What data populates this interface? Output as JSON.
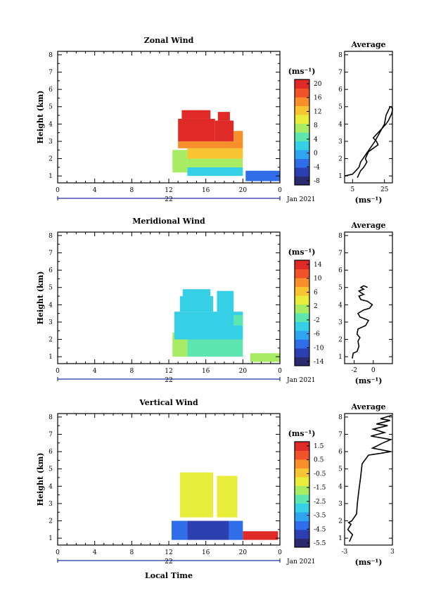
{
  "figure": {
    "x_axis_label": "Local Time",
    "date_label": "Jan 2021",
    "day_label": "22",
    "unit_label": "(ms⁻¹)",
    "avg_unit_label": "(ms⁻¹)"
  },
  "chart_data": [
    {
      "type": "heatmap",
      "title": "Zonal Wind",
      "xlabel": "",
      "ylabel": "Height (km)",
      "x_ticks": [
        "0",
        "4",
        "8",
        "12",
        "16",
        "20",
        "0"
      ],
      "xlim": [
        0,
        24
      ],
      "y_ticks": [
        "1",
        "2",
        "3",
        "4",
        "5",
        "6",
        "7",
        "8"
      ],
      "ylim": [
        0.6,
        8.2
      ],
      "colorbar": {
        "label": "(ms⁻¹)",
        "tick_labels": [
          "20",
          "16",
          "12",
          "8",
          "4",
          "0",
          "-4",
          "-8"
        ],
        "range": [
          -10,
          22
        ],
        "colors": [
          "#2a2a6e",
          "#2c3fb0",
          "#2f6ee8",
          "#2fa4f0",
          "#35d0e6",
          "#5ee6b0",
          "#a8ec64",
          "#e8ec3a",
          "#f7c531",
          "#f7902b",
          "#f0522a",
          "#e02a28"
        ]
      },
      "regions": [
        {
          "x": [
            12.4,
            14.0
          ],
          "y": [
            1.2,
            2.5
          ],
          "value": 7
        },
        {
          "x": [
            14.0,
            20.0
          ],
          "y": [
            1.0,
            1.5
          ],
          "value": 3
        },
        {
          "x": [
            14.0,
            20.0
          ],
          "y": [
            1.5,
            2.0
          ],
          "value": 8
        },
        {
          "x": [
            14.0,
            20.0
          ],
          "y": [
            2.0,
            2.6
          ],
          "value": 12
        },
        {
          "x": [
            13.0,
            20.0
          ],
          "y": [
            2.6,
            3.0
          ],
          "value": 15
        },
        {
          "x": [
            13.0,
            17.0
          ],
          "y": [
            3.0,
            4.3
          ],
          "value": 20
        },
        {
          "x": [
            13.4,
            16.5
          ],
          "y": [
            4.3,
            4.8
          ],
          "value": 21
        },
        {
          "x": [
            17.0,
            19.0
          ],
          "y": [
            3.0,
            4.2
          ],
          "value": 20
        },
        {
          "x": [
            17.3,
            18.6
          ],
          "y": [
            4.2,
            4.7
          ],
          "value": 21
        },
        {
          "x": [
            19.0,
            20.0
          ],
          "y": [
            3.0,
            3.6
          ],
          "value": 16
        },
        {
          "x": [
            20.3,
            24.0
          ],
          "y": [
            0.7,
            1.3
          ],
          "value": -3
        }
      ],
      "average_profile": {
        "title": "Average",
        "xlabel": "(ms⁻¹)",
        "x_ticks": [
          "5",
          "25"
        ],
        "xlim": [
          0,
          30
        ],
        "ylim": [
          0.6,
          8.2
        ],
        "x": [
          0,
          5,
          9,
          10,
          13,
          16,
          19,
          22,
          25,
          26,
          28,
          28.5,
          29,
          30,
          30,
          29.5,
          28.5,
          27.5,
          26,
          24,
          22,
          20,
          18,
          20,
          21,
          18,
          15,
          14,
          13,
          13.5,
          14,
          12,
          10,
          9,
          8
        ],
        "y": [
          1.0,
          1.1,
          1.5,
          1.8,
          2.2,
          2.6,
          3.0,
          3.5,
          4.0,
          4.5,
          4.9,
          5.0,
          5.0,
          4.9,
          4.8,
          4.6,
          4.4,
          4.2,
          4.0,
          3.8,
          3.6,
          3.4,
          3.2,
          3.0,
          2.8,
          2.6,
          2.4,
          2.2,
          2.0,
          1.9,
          1.8,
          1.5,
          1.3,
          1.1,
          0.9
        ]
      }
    },
    {
      "type": "heatmap",
      "title": "Meridional Wind",
      "xlabel": "",
      "ylabel": "Height (km)",
      "x_ticks": [
        "0",
        "4",
        "8",
        "12",
        "16",
        "20",
        "0"
      ],
      "xlim": [
        0,
        24
      ],
      "y_ticks": [
        "1",
        "2",
        "3",
        "4",
        "5",
        "6",
        "7",
        "8"
      ],
      "ylim": [
        0.6,
        8.2
      ],
      "colorbar": {
        "label": "(ms⁻¹)",
        "tick_labels": [
          "14",
          "10",
          "6",
          "2",
          "-2",
          "-6",
          "-10",
          "-14"
        ],
        "range": [
          -16,
          16
        ],
        "colors": [
          "#2a2a6e",
          "#2c3fb0",
          "#2f6ee8",
          "#2fa4f0",
          "#35d0e6",
          "#5ee6b0",
          "#a8ec64",
          "#e8ec3a",
          "#f7c531",
          "#f7902b",
          "#f0522a",
          "#e02a28"
        ]
      },
      "regions": [
        {
          "x": [
            12.4,
            14.0
          ],
          "y": [
            1.0,
            2.4
          ],
          "value": 0
        },
        {
          "x": [
            14.0,
            20.0
          ],
          "y": [
            1.0,
            2.0
          ],
          "value": -1
        },
        {
          "x": [
            12.6,
            20.0
          ],
          "y": [
            2.0,
            3.6
          ],
          "value": -3
        },
        {
          "x": [
            13.2,
            16.8
          ],
          "y": [
            3.6,
            4.5
          ],
          "value": -4
        },
        {
          "x": [
            13.5,
            16.5
          ],
          "y": [
            4.5,
            4.9
          ],
          "value": -5
        },
        {
          "x": [
            17.2,
            19.0
          ],
          "y": [
            3.4,
            4.8
          ],
          "value": -4
        },
        {
          "x": [
            19.0,
            20.0
          ],
          "y": [
            2.8,
            3.4
          ],
          "value": -2
        },
        {
          "x": [
            20.8,
            24.0
          ],
          "y": [
            0.7,
            1.2
          ],
          "value": 0
        }
      ],
      "average_profile": {
        "title": "Average",
        "xlabel": "(ms⁻¹)",
        "x_ticks": [
          "-2",
          "0"
        ],
        "xlim": [
          -3,
          2
        ],
        "ylim": [
          0.6,
          8.2
        ],
        "x": [
          -2.2,
          -2.1,
          -1.7,
          -1.5,
          -1.6,
          -1.4,
          -1.7,
          -1.6,
          -0.8,
          -0.5,
          -1.4,
          -1.6,
          -1.0,
          -0.4,
          -0.1,
          -0.6,
          -1.3,
          -1.5,
          -1.0,
          -1.3,
          -1.5,
          -1.0,
          -1.3,
          -1.0,
          -0.6
        ],
        "y": [
          0.9,
          1.2,
          1.3,
          1.6,
          1.9,
          2.1,
          2.3,
          2.6,
          2.8,
          3.1,
          3.3,
          3.5,
          3.7,
          3.8,
          4.0,
          4.2,
          4.3,
          4.5,
          4.6,
          4.7,
          4.8,
          4.9,
          5.0,
          5.1,
          5.0
        ]
      }
    },
    {
      "type": "heatmap",
      "title": "Vertical Wind",
      "xlabel": "Local Time",
      "ylabel": "Height (km)",
      "x_ticks": [
        "0",
        "4",
        "8",
        "12",
        "16",
        "20",
        "0"
      ],
      "xlim": [
        0,
        24
      ],
      "y_ticks": [
        "1",
        "2",
        "3",
        "4",
        "5",
        "6",
        "7",
        "8"
      ],
      "ylim": [
        0.6,
        8.2
      ],
      "colorbar": {
        "label": "(ms⁻¹)",
        "tick_labels": [
          "1.5",
          "0.5",
          "-0.5",
          "-1.5",
          "-2.5",
          "-3.5",
          "-4.5",
          "-5.5"
        ],
        "range": [
          -6,
          2
        ],
        "colors": [
          "#2a2a6e",
          "#2c3fb0",
          "#2f6ee8",
          "#2fa4f0",
          "#35d0e6",
          "#5ee6b0",
          "#a8ec64",
          "#e8ec3a",
          "#f7c531",
          "#f7902b",
          "#f0522a",
          "#e02a28"
        ]
      },
      "regions": [
        {
          "x": [
            12.3,
            14.0
          ],
          "y": [
            0.9,
            2.0
          ],
          "value": -4.5
        },
        {
          "x": [
            14.0,
            18.5
          ],
          "y": [
            0.9,
            2.0
          ],
          "value": -5.2
        },
        {
          "x": [
            18.5,
            20.0
          ],
          "y": [
            0.9,
            2.0
          ],
          "value": -4.5
        },
        {
          "x": [
            13.2,
            16.8
          ],
          "y": [
            2.2,
            4.8
          ],
          "value": -0.8
        },
        {
          "x": [
            17.2,
            19.4
          ],
          "y": [
            2.2,
            4.6
          ],
          "value": -1.0
        },
        {
          "x": [
            20.0,
            23.8
          ],
          "y": [
            0.9,
            1.4
          ],
          "value": 1.8
        }
      ],
      "average_profile": {
        "title": "Average",
        "xlabel": "(ms⁻¹)",
        "x_ticks": [
          "-3",
          "3"
        ],
        "xlim": [
          -3,
          3
        ],
        "ylim": [
          0.6,
          8.2
        ],
        "x": [
          -2.4,
          -2.0,
          -2.6,
          -2.2,
          -2.5,
          -2.1,
          -1.5,
          -1.4,
          -1.2,
          -1.0,
          -0.8,
          0.0,
          1.5,
          2.8,
          0.5,
          1.8,
          2.8,
          0.3,
          2.0,
          0.6,
          2.4,
          1.0,
          2.7,
          1.5,
          2.9
        ],
        "y": [
          0.8,
          1.2,
          1.5,
          1.8,
          1.9,
          2.0,
          2.4,
          3.0,
          3.8,
          4.5,
          5.3,
          5.8,
          5.9,
          6.0,
          6.2,
          6.5,
          6.7,
          6.9,
          7.1,
          7.3,
          7.5,
          7.6,
          7.8,
          7.9,
          8.1
        ]
      }
    }
  ]
}
